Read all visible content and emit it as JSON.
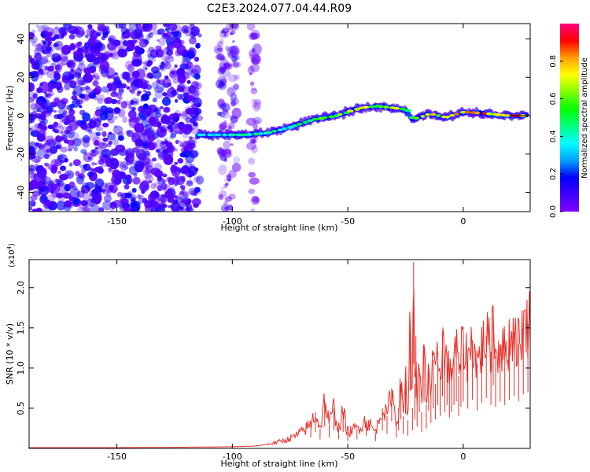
{
  "title": "C2E3.2024.077.04.44.R09",
  "chart_data": [
    {
      "type": "heatmap",
      "xlabel": "Height of straight line (km)",
      "ylabel": "Frequency (Hz)",
      "xlim": [
        -188,
        29
      ],
      "ylim": [
        -50,
        48
      ],
      "xticks": [
        -150,
        -100,
        -50,
        0
      ],
      "yticks": [
        -40,
        -20,
        0,
        20,
        40
      ],
      "grid": false,
      "colorbar": {
        "label": "Normalized spectral amplitude",
        "range": [
          0,
          1
        ],
        "ticks": [
          0.0,
          0.2,
          0.4,
          0.6,
          0.8
        ],
        "colormap": [
          "#8000ff",
          "#4000ff",
          "#0000ff",
          "#00a0ff",
          "#00ffff",
          "#00ff80",
          "#00ff00",
          "#80ff00",
          "#ffff00",
          "#ffa000",
          "#ff0000",
          "#ff0080"
        ]
      },
      "ridge": {
        "x": [
          -115,
          -105,
          -95,
          -85,
          -75,
          -65,
          -55,
          -45,
          -38,
          -30,
          -25,
          -22,
          -15,
          -8,
          0,
          10,
          20,
          28
        ],
        "y": [
          -10,
          -10,
          -10,
          -9,
          -6,
          -2,
          0,
          4,
          5,
          4,
          3,
          -2,
          1,
          -1,
          2,
          1,
          0,
          0
        ],
        "amplitude": [
          0.35,
          0.4,
          0.45,
          0.45,
          0.45,
          0.55,
          0.6,
          0.7,
          0.65,
          0.7,
          0.6,
          0.5,
          0.8,
          0.75,
          0.8,
          0.85,
          0.9,
          0.9
        ]
      },
      "noise_regions": [
        {
          "x": [
            -188,
            -114
          ],
          "y": [
            -50,
            48
          ],
          "amplitude": [
            0.05,
            0.2
          ]
        },
        {
          "x": [
            -106,
            -98
          ],
          "y": [
            -50,
            48
          ],
          "amplitude": [
            0.02,
            0.15
          ]
        },
        {
          "x": [
            -92,
            -89
          ],
          "y": [
            -50,
            48
          ],
          "amplitude": [
            0.02,
            0.08
          ]
        }
      ]
    },
    {
      "type": "line",
      "xlabel": "Height of straight line (km)",
      "ylabel": "SNR (10 * v/v)",
      "ylabel_multiplier": "(x10",
      "ylabel_exponent": "4",
      "ylabel_multiplier_close": ")",
      "xlim": [
        -188,
        29
      ],
      "ylim": [
        0,
        2.35
      ],
      "xticks": [
        -150,
        -100,
        -50,
        0
      ],
      "yticks": [
        0.5,
        1.0,
        1.5,
        2.0
      ],
      "color": "#e8302a",
      "series": [
        {
          "x": [
            -188,
            -150,
            -120,
            -100,
            -90,
            -85,
            -80,
            -75,
            -70,
            -66,
            -64,
            -62,
            -60,
            -58,
            -56,
            -54,
            -52,
            -50,
            -46,
            -42,
            -38,
            -35,
            -33,
            -31,
            -29,
            -28,
            -27,
            -26,
            -25,
            -24,
            -23,
            -22,
            -21.5,
            -21,
            -20.5,
            -20,
            -19,
            -18,
            -17,
            -16,
            -15,
            -14,
            -13,
            -12,
            -11,
            -10,
            -9,
            -8,
            -7,
            -6,
            -5,
            -4,
            -3,
            -2,
            -1,
            0,
            2,
            4,
            6,
            8,
            10,
            12,
            13,
            14,
            16,
            18,
            20,
            22,
            24,
            26,
            28,
            29
          ],
          "y": [
            0.01,
            0.01,
            0.015,
            0.02,
            0.03,
            0.05,
            0.08,
            0.12,
            0.2,
            0.3,
            0.45,
            0.25,
            0.6,
            0.3,
            0.5,
            0.25,
            0.45,
            0.2,
            0.25,
            0.35,
            0.2,
            0.5,
            0.4,
            0.75,
            0.3,
            0.5,
            0.8,
            0.4,
            0.95,
            0.35,
            1.6,
            0.5,
            2.32,
            0.8,
            1.4,
            0.6,
            1.0,
            0.45,
            1.3,
            0.55,
            1.05,
            0.7,
            1.1,
            0.8,
            1.2,
            0.9,
            1.45,
            1.0,
            1.2,
            0.85,
            1.0,
            1.2,
            1.3,
            0.9,
            1.15,
            1.3,
            1.1,
            1.35,
            1.05,
            1.25,
            1.4,
            1.2,
            1.75,
            1.15,
            1.3,
            1.2,
            1.35,
            1.45,
            1.3,
            1.5,
            1.55,
            1.6
          ]
        }
      ]
    }
  ]
}
